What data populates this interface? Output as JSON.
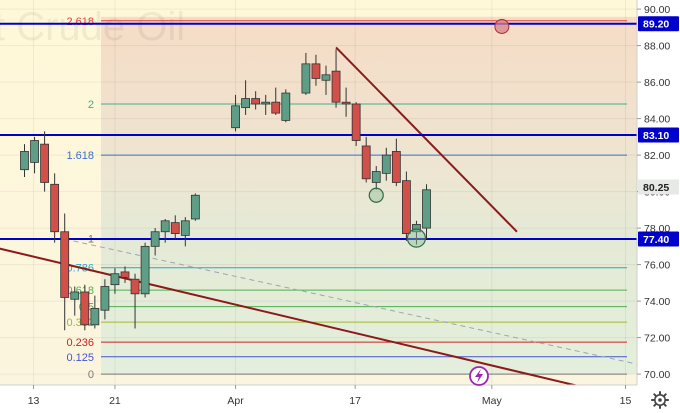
{
  "watermark": "t Crude Oil",
  "colors": {
    "up": "#5f9e86",
    "down": "#d2504a",
    "wick": "#333333",
    "trend": "#8b1a1a",
    "level": "#0000cc",
    "current_tag": "#e6e9e6",
    "dashed": "#9aa7b0"
  },
  "icons": {
    "settings": "gear-icon",
    "flash": "lightning-icon"
  },
  "chart_data": {
    "type": "candlestick",
    "x_ticks": [
      "13",
      "21",
      "Apr",
      "17",
      "May",
      "15"
    ],
    "y_ticks": [
      "70.00",
      "72.00",
      "74.00",
      "76.00",
      "78.00",
      "80.00",
      "82.00",
      "84.00",
      "86.00",
      "88.00",
      "90.00"
    ],
    "ylim": [
      69.5,
      91.0
    ],
    "candles": [
      {
        "day": 0,
        "o": 81.2,
        "h": 82.6,
        "l": 80.8,
        "c": 82.2
      },
      {
        "day": 1,
        "o": 81.6,
        "h": 83.0,
        "l": 81.0,
        "c": 82.8
      },
      {
        "day": 2,
        "o": 82.6,
        "h": 83.3,
        "l": 80.0,
        "c": 80.5
      },
      {
        "day": 3,
        "o": 80.4,
        "h": 81.0,
        "l": 77.2,
        "c": 77.8
      },
      {
        "day": 4,
        "o": 77.8,
        "h": 78.8,
        "l": 72.4,
        "c": 74.2
      },
      {
        "day": 5,
        "o": 74.1,
        "h": 74.8,
        "l": 73.2,
        "c": 74.5
      },
      {
        "day": 6,
        "o": 74.5,
        "h": 74.9,
        "l": 72.4,
        "c": 72.7
      },
      {
        "day": 7,
        "o": 72.7,
        "h": 74.3,
        "l": 72.5,
        "c": 73.6
      },
      {
        "day": 8,
        "o": 73.5,
        "h": 75.2,
        "l": 73.0,
        "c": 74.8
      },
      {
        "day": 9,
        "o": 74.9,
        "h": 75.8,
        "l": 74.4,
        "c": 75.5
      },
      {
        "day": 10,
        "o": 75.6,
        "h": 75.9,
        "l": 75.0,
        "c": 75.3
      },
      {
        "day": 11,
        "o": 75.2,
        "h": 75.5,
        "l": 72.5,
        "c": 74.4
      },
      {
        "day": 12,
        "o": 74.4,
        "h": 77.2,
        "l": 74.2,
        "c": 77.0
      },
      {
        "day": 13,
        "o": 77.0,
        "h": 78.0,
        "l": 76.5,
        "c": 77.8
      },
      {
        "day": 14,
        "o": 77.8,
        "h": 78.5,
        "l": 77.2,
        "c": 78.4
      },
      {
        "day": 15,
        "o": 78.3,
        "h": 78.7,
        "l": 77.4,
        "c": 77.7
      },
      {
        "day": 16,
        "o": 77.6,
        "h": 78.6,
        "l": 77.0,
        "c": 78.4
      },
      {
        "day": 17,
        "o": 78.5,
        "h": 79.9,
        "l": 78.4,
        "c": 79.8
      },
      {
        "day": 21,
        "o": 83.5,
        "h": 85.3,
        "l": 83.3,
        "c": 84.7
      },
      {
        "day": 22,
        "o": 84.6,
        "h": 86.1,
        "l": 84.2,
        "c": 85.1
      },
      {
        "day": 23,
        "o": 85.1,
        "h": 85.5,
        "l": 84.5,
        "c": 84.8
      },
      {
        "day": 24,
        "o": 84.8,
        "h": 85.3,
        "l": 84.2,
        "c": 84.9
      },
      {
        "day": 25,
        "o": 84.9,
        "h": 85.7,
        "l": 84.2,
        "c": 84.3
      },
      {
        "day": 26,
        "o": 83.9,
        "h": 85.6,
        "l": 83.8,
        "c": 85.4
      },
      {
        "day": 28,
        "o": 85.4,
        "h": 87.6,
        "l": 85.3,
        "c": 87.0
      },
      {
        "day": 29,
        "o": 87.0,
        "h": 87.5,
        "l": 85.8,
        "c": 86.2
      },
      {
        "day": 30,
        "o": 86.1,
        "h": 86.9,
        "l": 85.3,
        "c": 86.4
      },
      {
        "day": 31,
        "o": 86.6,
        "h": 87.8,
        "l": 84.6,
        "c": 84.9
      },
      {
        "day": 32,
        "o": 84.9,
        "h": 85.7,
        "l": 84.1,
        "c": 84.8
      },
      {
        "day": 33,
        "o": 84.8,
        "h": 84.9,
        "l": 82.5,
        "c": 82.8
      },
      {
        "day": 34,
        "o": 82.5,
        "h": 83.0,
        "l": 80.5,
        "c": 80.7
      },
      {
        "day": 35,
        "o": 80.5,
        "h": 81.4,
        "l": 80.1,
        "c": 81.1
      },
      {
        "day": 36,
        "o": 81.0,
        "h": 82.4,
        "l": 80.6,
        "c": 82.0
      },
      {
        "day": 37,
        "o": 82.2,
        "h": 82.9,
        "l": 80.3,
        "c": 80.5
      },
      {
        "day": 38,
        "o": 80.6,
        "h": 81.1,
        "l": 77.3,
        "c": 77.7
      },
      {
        "day": 39,
        "o": 77.8,
        "h": 78.4,
        "l": 77.1,
        "c": 78.2
      },
      {
        "day": 40,
        "o": 78.0,
        "h": 80.4,
        "l": 77.4,
        "c": 80.1
      }
    ],
    "levels": [
      {
        "price": 89.2,
        "label": "89.20"
      },
      {
        "price": 83.1,
        "label": "83.10"
      },
      {
        "price": 77.4,
        "label": "77.40"
      }
    ],
    "current_price": {
      "price": 80.25,
      "label": "80.25"
    },
    "fibonacci": [
      {
        "ratio": "2.618",
        "price": 89.36,
        "color": "#e04040"
      },
      {
        "ratio": "2",
        "price": 84.8,
        "color": "#3fae8f"
      },
      {
        "ratio": "1.618",
        "price": 82.0,
        "color": "#3a6fd0"
      },
      {
        "ratio": "1",
        "price": 77.42,
        "color": "#777777"
      },
      {
        "ratio": "0.786",
        "price": 75.83,
        "color": "#2aa6c8"
      },
      {
        "ratio": "0.618",
        "price": 74.6,
        "color": "#4caf50"
      },
      {
        "ratio": "0.5",
        "price": 73.7,
        "color": "#4caf50"
      },
      {
        "ratio": "0.382",
        "price": 72.85,
        "color": "#a3b82e"
      },
      {
        "ratio": "0.236",
        "price": 71.75,
        "color": "#cc2222"
      },
      {
        "ratio": "0.125",
        "price": 70.95,
        "color": "#4455cc"
      },
      {
        "ratio": "0",
        "price": 70.0,
        "color": "#777777"
      }
    ],
    "trendlines": [
      {
        "from": {
          "day": -8,
          "price": 77.6
        },
        "to": {
          "day": 57,
          "price": 69.1
        },
        "style": "solid"
      },
      {
        "from": {
          "day": 31,
          "price": 87.9
        },
        "to": {
          "day": 49,
          "price": 77.8
        },
        "style": "solid"
      },
      {
        "from": {
          "day": 4,
          "price": 77.4
        },
        "to": {
          "day": 63,
          "price": 70.3
        },
        "style": "dashed"
      }
    ],
    "markers": [
      {
        "day": 47.5,
        "price": 89.05
      },
      {
        "day": 35,
        "price": 79.8
      },
      {
        "day": 39,
        "price": 77.45
      }
    ]
  }
}
